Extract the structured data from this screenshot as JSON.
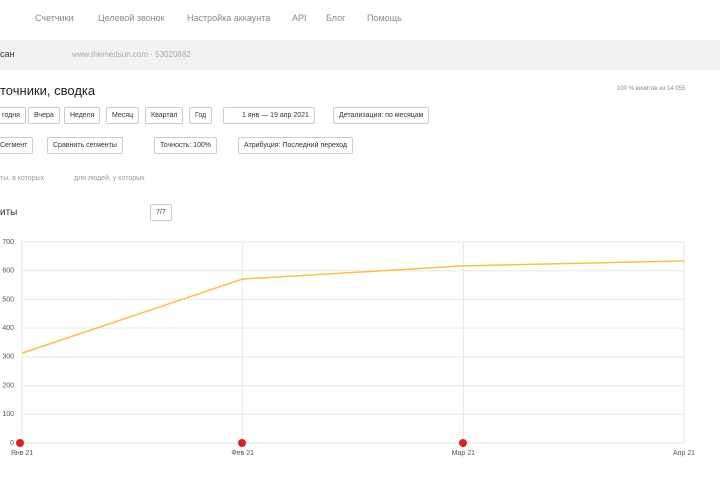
{
  "nav": [
    "Счетчики",
    "Целевой звонок",
    "Настройка аккаунта",
    "API",
    "Блог",
    "Помощь"
  ],
  "counter": {
    "name": "сан",
    "site": "www.themedsun.com · 53020882"
  },
  "report": {
    "title": "точники, сводка",
    "visits_note": "100 % визитов из 14 055"
  },
  "periods": [
    "годня",
    "Вчера",
    "Неделя",
    "Месяц",
    "Квартал",
    "Год"
  ],
  "date_range": "1 янв — 19 апр 2021",
  "detail": "Детализация: по месяцам",
  "filters": [
    "Сегмент",
    "Сравнить сегменты",
    "Точность: 100%",
    "Атрибуция: Последний переход"
  ],
  "conditions": [
    "ты, в которых",
    "для людей, у которых"
  ],
  "metric": {
    "label": "иты",
    "series_count": "7/7"
  },
  "chart_data": {
    "type": "line",
    "categories": [
      "Янв 21",
      "Фев 21",
      "Мар 21",
      "Апр 21"
    ],
    "values": [
      313,
      571,
      617,
      634
    ],
    "color": "#f5c342",
    "ylim": [
      0,
      700
    ],
    "yticks": [
      0,
      100,
      200,
      300,
      400,
      500,
      600,
      700
    ],
    "grid": true
  }
}
